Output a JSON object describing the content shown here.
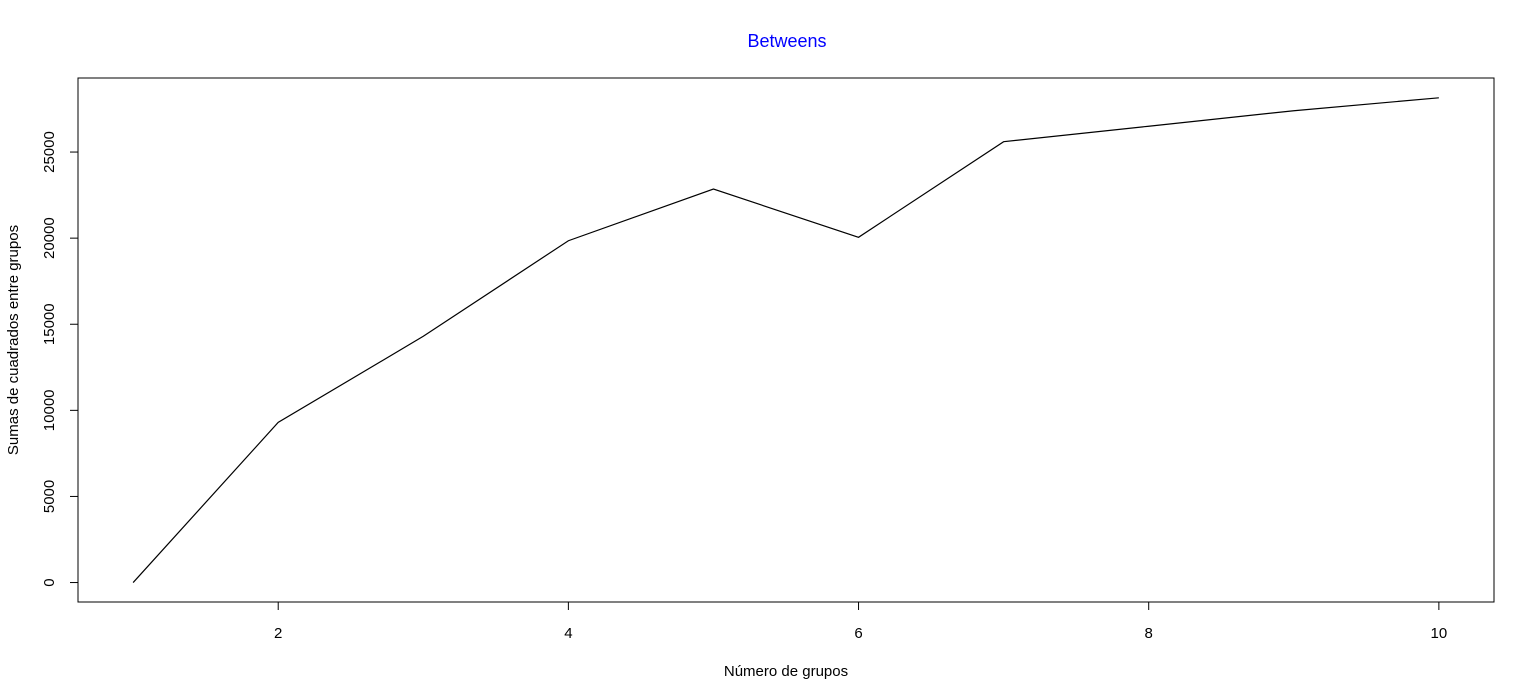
{
  "chart_data": {
    "type": "line",
    "title": "Betweens",
    "title_color": "#0000FF",
    "xlabel": "Número de grupos",
    "ylabel": "Sumas de cuadrados entre grupos",
    "xlim": [
      0.62,
      10.38
    ],
    "ylim": [
      -1130,
      29300
    ],
    "x_ticks": [
      2,
      4,
      6,
      8,
      10
    ],
    "y_ticks": [
      0,
      5000,
      10000,
      15000,
      20000,
      25000
    ],
    "grid": false,
    "legend": "none",
    "series": [
      {
        "x": [
          1,
          2,
          3,
          4,
          5,
          6,
          7,
          8,
          9,
          10
        ],
        "y": [
          0,
          9300,
          14300,
          19850,
          22850,
          20050,
          25600,
          26500,
          27400,
          28150
        ],
        "color": "#000000"
      }
    ]
  }
}
